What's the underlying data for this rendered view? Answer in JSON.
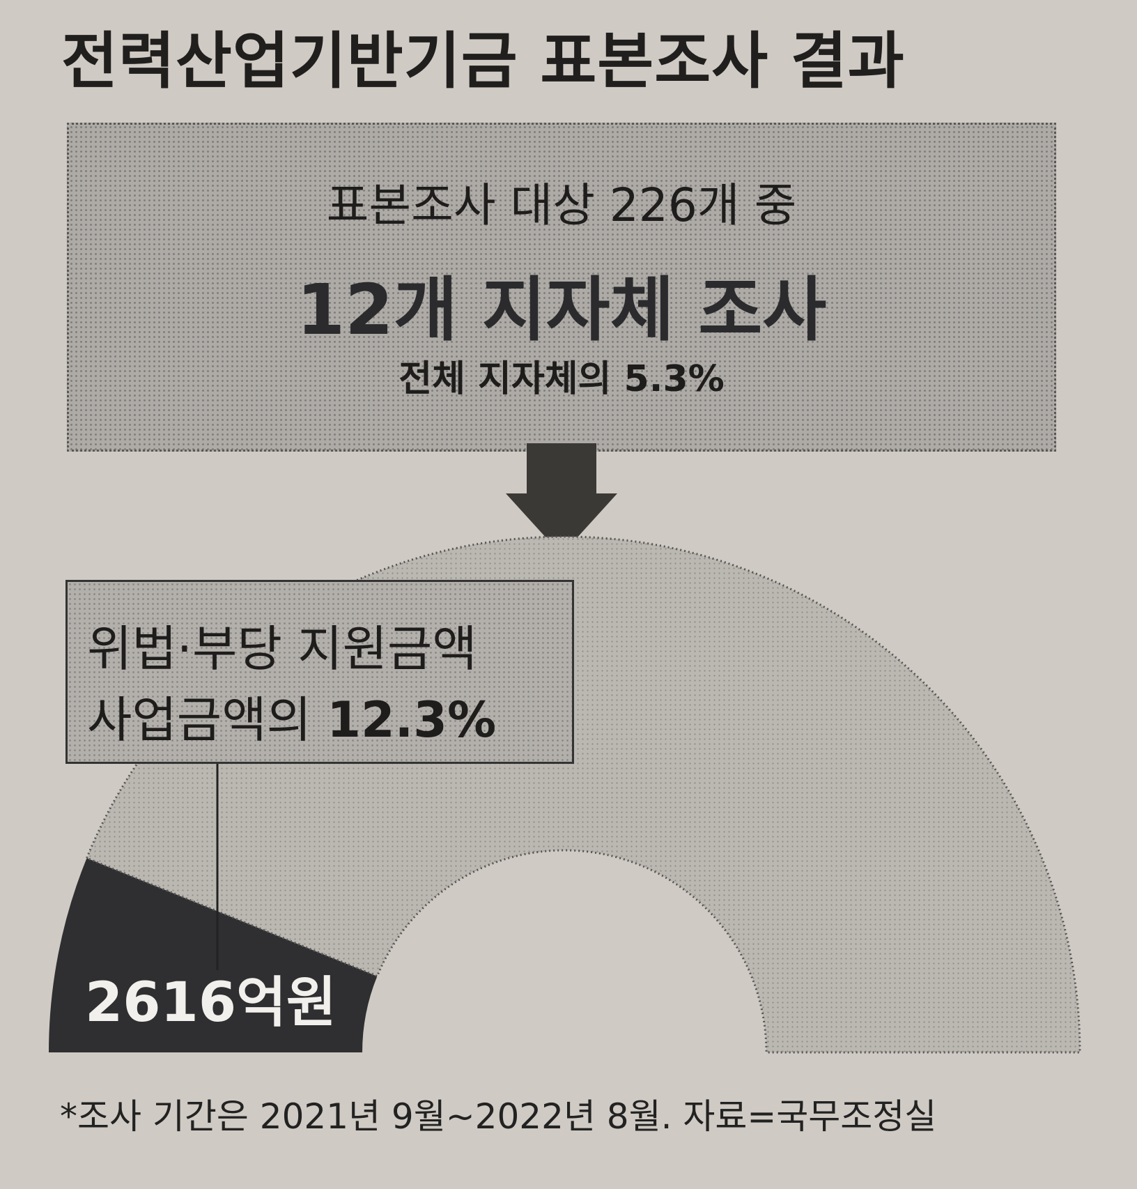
{
  "title": "전력산업기반기금 표본조사 결과",
  "summary_box": {
    "line1": "표본조사 대상 226개 중",
    "line2": "12개 지자체 조사",
    "line3": "전체 지자체의 5.3%"
  },
  "callout": {
    "line1": "위법·부당 지원금액",
    "line2_prefix": "사업금액의 ",
    "line2_value": "12.3%"
  },
  "footnote": "*조사 기간은 2021년 9월~2022년 8월. 자료=국무조정실",
  "colors": {
    "background": "#cfcac3",
    "rest_segment": "#bbb7b1",
    "highlight_segment": "#2f2f31",
    "box_fill": "#aeaba7"
  },
  "chart_data": {
    "type": "pie",
    "style": "half-donut",
    "slices": [
      {
        "label": "2616억원",
        "percent": 12.3
      },
      {
        "label": "",
        "percent": 87.7
      }
    ],
    "data_labels": [
      "2616억원"
    ]
  }
}
